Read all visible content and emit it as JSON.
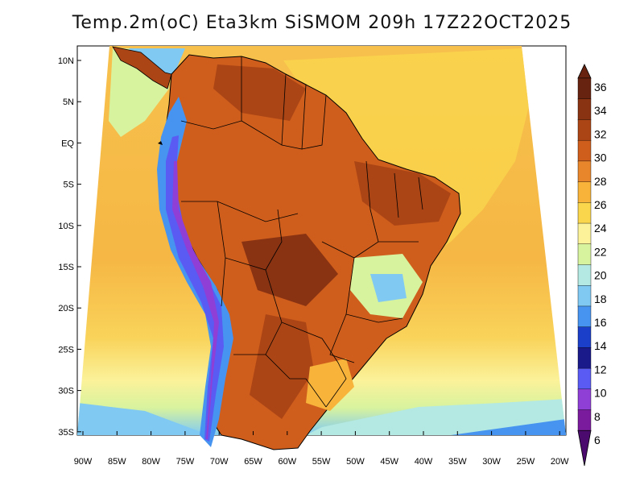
{
  "title": "Temp.2m(oC) Eta3km SiSMOM 209h 17Z22OCT2025",
  "map": {
    "variable": "2 m air temperature",
    "units": "oC",
    "lat_ticks": [
      "10N",
      "5N",
      "EQ",
      "5S",
      "10S",
      "15S",
      "20S",
      "25S",
      "30S",
      "35S"
    ],
    "lon_ticks": [
      "90W",
      "85W",
      "80W",
      "75W",
      "70W",
      "65W",
      "60W",
      "55W",
      "50W",
      "45W",
      "40W",
      "35W",
      "30W",
      "25W",
      "20W"
    ]
  },
  "colorbar": {
    "labels": [
      "36",
      "34",
      "32",
      "30",
      "28",
      "26",
      "24",
      "22",
      "20",
      "18",
      "16",
      "14",
      "12",
      "10",
      "8",
      "6"
    ],
    "colors": [
      "#67230f",
      "#8a3312",
      "#ac4515",
      "#cf5e1c",
      "#e8862c",
      "#f7b33a",
      "#fad64c",
      "#fbf29a",
      "#d8f39e",
      "#b3e9e2",
      "#7fc9f3",
      "#4694f0",
      "#1b3fc8",
      "#1a1a8a",
      "#5a5bf2",
      "#8f3fd6",
      "#7a1b9e",
      "#4a0a6e"
    ]
  },
  "legend_colors": {
    "ocean_warm": "#f5b54a",
    "ocean_mid": "#f9d45a",
    "ocean_cool": "#d9f0a0",
    "land_hot": "#c8511e",
    "land_hotter": "#a13c14",
    "andes_cold": "#4b6de8",
    "andes_coldest": "#7a2fc8"
  }
}
